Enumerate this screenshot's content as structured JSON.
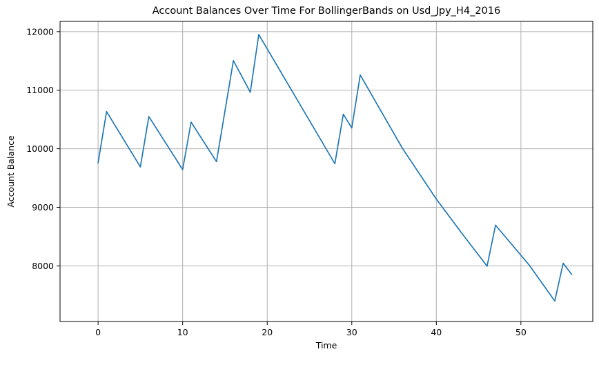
{
  "chart_data": {
    "type": "line",
    "title": "Account Balances Over Time For BollingerBands on Usd_Jpy_H4_2016",
    "xlabel": "Time",
    "ylabel": "Account Balance",
    "xlim": [
      -4.5,
      58.5
    ],
    "ylim": [
      7050,
      12175
    ],
    "xticks": [
      0,
      10,
      20,
      30,
      40,
      50
    ],
    "xtick_labels": [
      "0",
      "10",
      "20",
      "30",
      "40",
      "50"
    ],
    "yticks": [
      8000,
      9000,
      10000,
      11000,
      12000
    ],
    "ytick_labels": [
      "8000",
      "9000",
      "10000",
      "11000",
      "12000"
    ],
    "grid": true,
    "line_color": "#1f77b4",
    "series": [
      {
        "x": [
          0,
          1,
          5,
          6,
          10,
          11,
          14,
          16,
          18,
          19,
          28,
          29,
          30,
          31,
          36,
          40,
          43,
          46,
          47,
          51,
          54,
          55,
          56
        ],
        "values": [
          9760,
          10635,
          9690,
          10550,
          9645,
          10455,
          9780,
          11505,
          10965,
          11950,
          9745,
          10590,
          10355,
          11260,
          10005,
          9140,
          8560,
          7995,
          8695,
          8010,
          7400,
          8045,
          7855
        ]
      }
    ]
  }
}
